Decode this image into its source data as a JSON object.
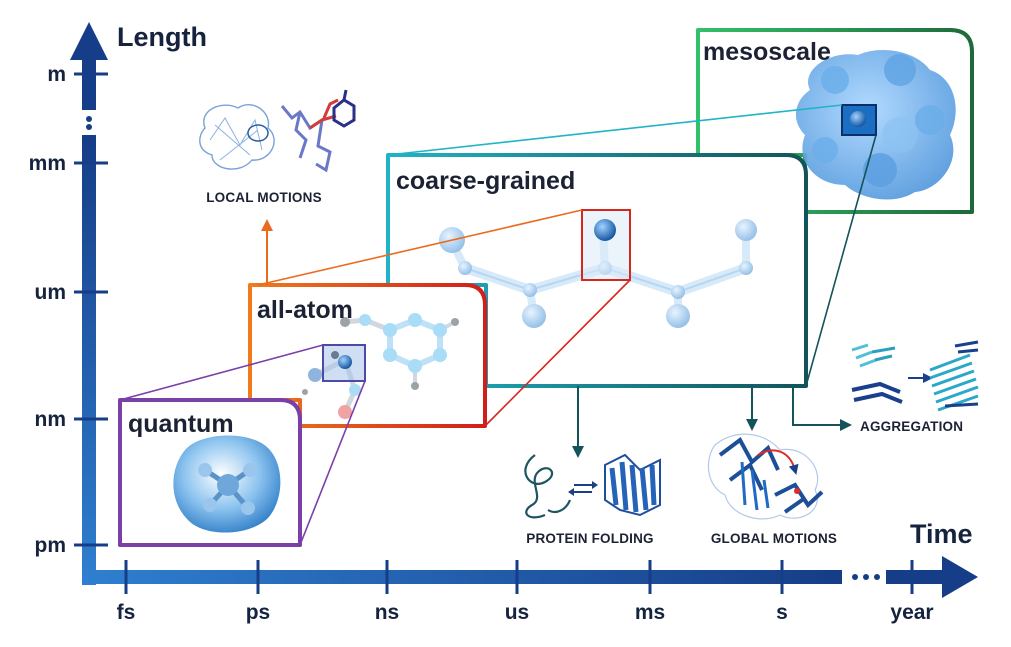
{
  "axes": {
    "y_title": "Length",
    "x_title": "Time",
    "y_ticks": [
      "m",
      "mm",
      "um",
      "nm",
      "pm"
    ],
    "x_ticks": [
      "fs",
      "ps",
      "ns",
      "us",
      "ms",
      "s",
      "year"
    ]
  },
  "scales": {
    "mesoscale": "mesoscale",
    "coarse_grained": "coarse-grained",
    "all_atom": "all-atom",
    "quantum": "quantum"
  },
  "phenomena": {
    "local_motions": "LOCAL MOTIONS",
    "protein_folding": "PROTEIN FOLDING",
    "global_motions": "GLOBAL MOTIONS",
    "aggregation": "AGGREGATION"
  },
  "colors": {
    "axis_blue": "#1f5fb0",
    "quantum": "#7b3fa8",
    "all_atom": "#d9261c",
    "coarse_grained_left": "#21b3c6",
    "coarse_grained_right": "#12545a",
    "mesoscale": "#2e9a48",
    "local_motions_arrow": "#ec6a1e",
    "phenomena_arrow": "#13545a"
  },
  "icons": {
    "quantum": "electron-density-molecule-icon",
    "all_atom": "ball-and-stick-molecule-icon",
    "coarse_grained": "bead-chain-icon",
    "mesoscale": "protein-surface-blob-icon",
    "local_motions": "protein-sidechain-icon",
    "protein_folding": "folding-equilibrium-icon",
    "global_motions": "protein-conformational-change-icon",
    "aggregation": "fibril-aggregation-icon"
  }
}
